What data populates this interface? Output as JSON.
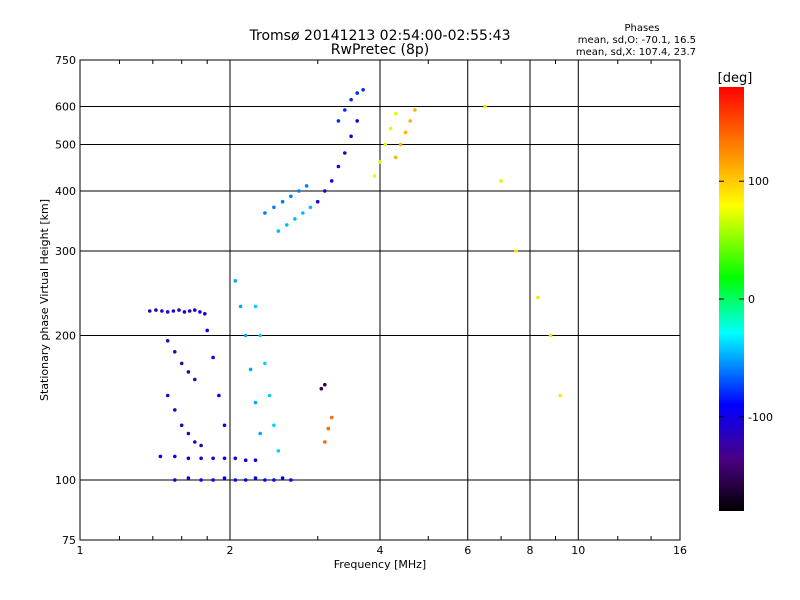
{
  "chart_data": {
    "type": "scatter",
    "title": "Tromsø 20141213 02:54:00-02:55:43",
    "subtitle": "RwPretec (8p)",
    "xlabel": "Frequency [MHz]",
    "ylabel": "Stationary phase Virtual Height [km]",
    "x_scale": "log",
    "y_scale": "log",
    "xlim": [
      1,
      16
    ],
    "ylim": [
      75,
      750
    ],
    "x_ticks": [
      1,
      2,
      4,
      6,
      8,
      10,
      16
    ],
    "x_tick_labels": [
      "1",
      "2",
      "4",
      "6",
      "8",
      "10",
      "16"
    ],
    "y_ticks": [
      75,
      100,
      200,
      300,
      400,
      500,
      600,
      750
    ],
    "y_tick_labels": [
      "75",
      "100",
      "200",
      "300",
      "400",
      "500",
      "600",
      "750"
    ],
    "grid": true,
    "stats": {
      "heading": "Phases",
      "line_o": "mean, sd,O: -70.1, 16.5",
      "line_x": "mean, sd,X: 107.4, 23.7"
    },
    "colorbar": {
      "label": "[deg]",
      "range": [
        -180,
        180
      ],
      "ticks": [
        100,
        0,
        -100
      ],
      "tick_labels": [
        "100",
        "0",
        "-100"
      ]
    },
    "series": [
      {
        "x": [
          1.38,
          1.42,
          1.46,
          1.5,
          1.54,
          1.58,
          1.62,
          1.66,
          1.7,
          1.74,
          1.78
        ],
        "y": [
          225,
          226,
          225,
          224,
          225,
          226,
          224,
          225,
          226,
          224,
          222
        ],
        "phase": -110
      },
      {
        "x": [
          1.45,
          1.55,
          1.65,
          1.75,
          1.85,
          1.95,
          2.05,
          2.15,
          2.25
        ],
        "y": [
          112,
          112,
          111,
          111,
          111,
          111,
          111,
          110,
          110
        ],
        "phase": -100
      },
      {
        "x": [
          1.55,
          1.65,
          1.75,
          1.85,
          1.95,
          2.05,
          2.15,
          2.25,
          2.35,
          2.45,
          2.55,
          2.65
        ],
        "y": [
          100,
          101,
          100,
          100,
          101,
          100,
          100,
          101,
          100,
          100,
          101,
          100
        ],
        "phase": -90
      },
      {
        "x": [
          1.5,
          1.55,
          1.6,
          1.65,
          1.7,
          1.75
        ],
        "y": [
          150,
          140,
          130,
          125,
          120,
          118
        ],
        "phase": -120
      },
      {
        "x": [
          1.5,
          1.55,
          1.6,
          1.65,
          1.7
        ],
        "y": [
          195,
          185,
          175,
          168,
          162
        ],
        "phase": -125
      },
      {
        "x": [
          1.8,
          1.85,
          1.9,
          1.95
        ],
        "y": [
          205,
          180,
          150,
          130
        ],
        "phase": -95
      },
      {
        "x": [
          2.05,
          2.1,
          2.15,
          2.2,
          2.25,
          2.3
        ],
        "y": [
          260,
          230,
          200,
          170,
          145,
          125
        ],
        "phase": -50
      },
      {
        "x": [
          2.25,
          2.3,
          2.35,
          2.4,
          2.45,
          2.5
        ],
        "y": [
          230,
          200,
          175,
          150,
          130,
          115
        ],
        "phase": -40
      },
      {
        "x": [
          2.35,
          2.45,
          2.55,
          2.65,
          2.75,
          2.85
        ],
        "y": [
          360,
          370,
          380,
          390,
          400,
          410
        ],
        "phase": -60
      },
      {
        "x": [
          2.5,
          2.6,
          2.7,
          2.8,
          2.9
        ],
        "y": [
          330,
          340,
          350,
          360,
          370
        ],
        "phase": -45
      },
      {
        "x": [
          3.0,
          3.1,
          3.2,
          3.3,
          3.4,
          3.5,
          3.6
        ],
        "y": [
          380,
          400,
          420,
          450,
          480,
          520,
          560
        ],
        "phase": -105
      },
      {
        "x": [
          3.3,
          3.4,
          3.5,
          3.6,
          3.7
        ],
        "y": [
          560,
          590,
          620,
          640,
          650
        ],
        "phase": -80
      },
      {
        "x": [
          3.9,
          4.0,
          4.1,
          4.2,
          4.3
        ],
        "y": [
          430,
          460,
          500,
          540,
          580
        ],
        "phase": 70
      },
      {
        "x": [
          4.3,
          4.4,
          4.5,
          4.6,
          4.7
        ],
        "y": [
          470,
          500,
          530,
          560,
          590
        ],
        "phase": 110
      },
      {
        "x": [
          3.1,
          3.15,
          3.2
        ],
        "y": [
          120,
          128,
          135
        ],
        "phase": 140
      },
      {
        "x": [
          3.05,
          3.1
        ],
        "y": [
          155,
          158
        ],
        "phase": -150
      },
      {
        "x": [
          6.5,
          7.0,
          7.5,
          8.3,
          8.8,
          9.2
        ],
        "y": [
          600,
          420,
          300,
          240,
          200,
          150
        ],
        "phase": 90
      }
    ]
  }
}
